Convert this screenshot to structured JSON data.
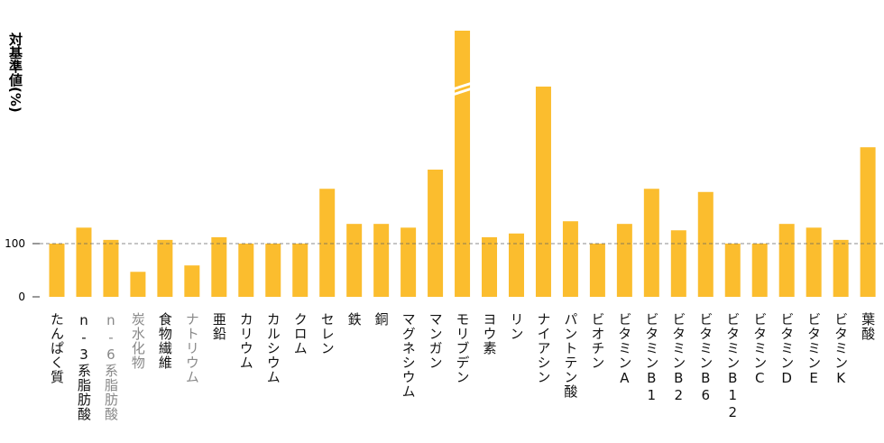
{
  "chart_data": {
    "type": "bar",
    "y_label": "対基準値(%)",
    "categories": [
      "たんぱく質",
      "n-3系脂肪酸",
      "n-6系脂肪酸",
      "炭水化物",
      "食物繊維",
      "ナトリウム",
      "亜鉛",
      "カリウム",
      "カルシウム",
      "クロム",
      "セレン",
      "鉄",
      "銅",
      "マグネシウム",
      "マンガン",
      "モリブデン",
      "ヨウ素",
      "リン",
      "ナイアシン",
      "パントテン酸",
      "ビオチン",
      "ビタミンA",
      "ビタミンB1",
      "ビタミンB2",
      "ビタミンB6",
      "ビタミンB12",
      "ビタミンC",
      "ビタミンD",
      "ビタミンE",
      "ビタミンK",
      "葉酸"
    ],
    "values": [
      100,
      130,
      107,
      47,
      107,
      59,
      112,
      100,
      100,
      100,
      203,
      137,
      137,
      130,
      239,
      500,
      112,
      119,
      395,
      142,
      100,
      137,
      203,
      125,
      197,
      100,
      100,
      137,
      130,
      107,
      281
    ],
    "category_colors": [
      "#111111",
      "#111111",
      "#888888",
      "#888888",
      "#111111",
      "#888888",
      "#111111",
      "#111111",
      "#111111",
      "#111111",
      "#111111",
      "#111111",
      "#111111",
      "#111111",
      "#111111",
      "#111111",
      "#111111",
      "#111111",
      "#111111",
      "#111111",
      "#111111",
      "#111111",
      "#111111",
      "#111111",
      "#111111",
      "#111111",
      "#111111",
      "#111111",
      "#111111",
      "#111111",
      "#111111"
    ],
    "color": "#fbbd2e",
    "ylim": [
      0,
      500
    ],
    "yticks": [
      0,
      100
    ],
    "reference_line": 100
  }
}
